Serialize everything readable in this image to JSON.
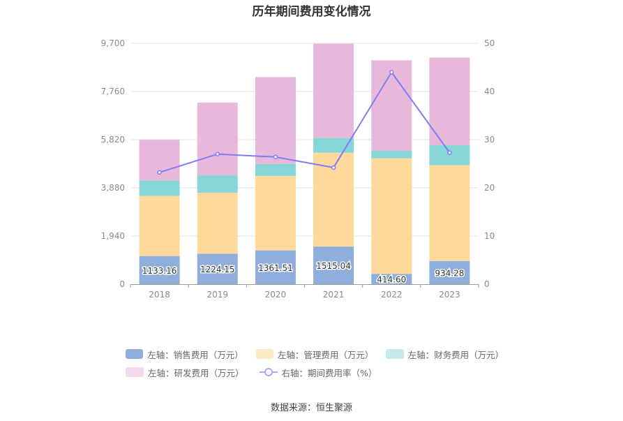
{
  "chart_data": {
    "type": "bar",
    "stacked": true,
    "title": "历年期间费用变化情况",
    "categories": [
      "2018",
      "2019",
      "2020",
      "2021",
      "2022",
      "2023"
    ],
    "left_axis": {
      "min": 0,
      "max": 9700,
      "ticks": [
        "0",
        "1,940",
        "3,880",
        "5,820",
        "7,760",
        "9,700"
      ]
    },
    "right_axis": {
      "min": 0,
      "max": 50,
      "ticks": [
        "0",
        "10",
        "20",
        "30",
        "40",
        "50"
      ]
    },
    "series": [
      {
        "name": "左轴：销售费用（万元）",
        "axis": "left",
        "color": "#8eaedc",
        "values": [
          1133.16,
          1224.15,
          1361.51,
          1515.04,
          414.6,
          934.28
        ],
        "labels": [
          "1133.16",
          "1224.15",
          "1361.51",
          "1515.04",
          "414.60",
          "934.28"
        ]
      },
      {
        "name": "左轴：管理费用（万元）",
        "axis": "left",
        "color": "#fed99b",
        "values": [
          2420,
          2460,
          3000,
          3780,
          4660,
          3860
        ]
      },
      {
        "name": "左轴：财务费用（万元）",
        "axis": "left",
        "color": "#86d6d8",
        "values": [
          630,
          700,
          480,
          590,
          300,
          800
        ]
      },
      {
        "name": "左轴：研发费用（万元）",
        "axis": "left",
        "color": "#e7b8da",
        "values": [
          1630,
          2930,
          3500,
          3800,
          3640,
          3530
        ]
      },
      {
        "name": "右轴：期间费用率（%）",
        "axis": "right",
        "type": "line",
        "color": "#7f7cf4",
        "values": [
          23.2,
          27.0,
          26.4,
          24.2,
          44.0,
          27.3
        ]
      }
    ]
  },
  "legend": {
    "row1": [
      "左轴：销售费用（万元）",
      "左轴：管理费用（万元）",
      "左轴：财务费用（万元）"
    ],
    "row2": [
      "左轴：研发费用（万元）",
      "右轴：期间费用率（%）"
    ]
  },
  "colors": {
    "sales": "#8eaedc",
    "admin_legend": "#fde8c6",
    "finance_legend": "#c4e9ea",
    "rd_legend": "#f3d9ec",
    "line": "#7f7cf4"
  },
  "source": "数据来源：恒生聚源"
}
